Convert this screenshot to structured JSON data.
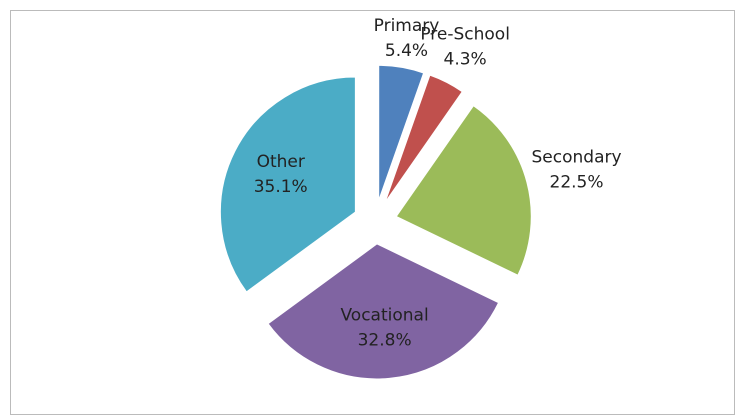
{
  "chart_data": {
    "type": "pie",
    "categories": [
      "Primary",
      "Pre-School",
      "Secondary",
      "Vocational",
      "Other"
    ],
    "values": [
      5.4,
      4.3,
      22.5,
      32.8,
      35.1
    ],
    "value_labels": [
      "5.4%",
      "4.3%",
      "22.5%",
      "32.8%",
      "35.1%"
    ],
    "colors": [
      "#4f81bd",
      "#c0504d",
      "#9bbb59",
      "#8064a2",
      "#4bacc6"
    ],
    "exploded": true
  }
}
